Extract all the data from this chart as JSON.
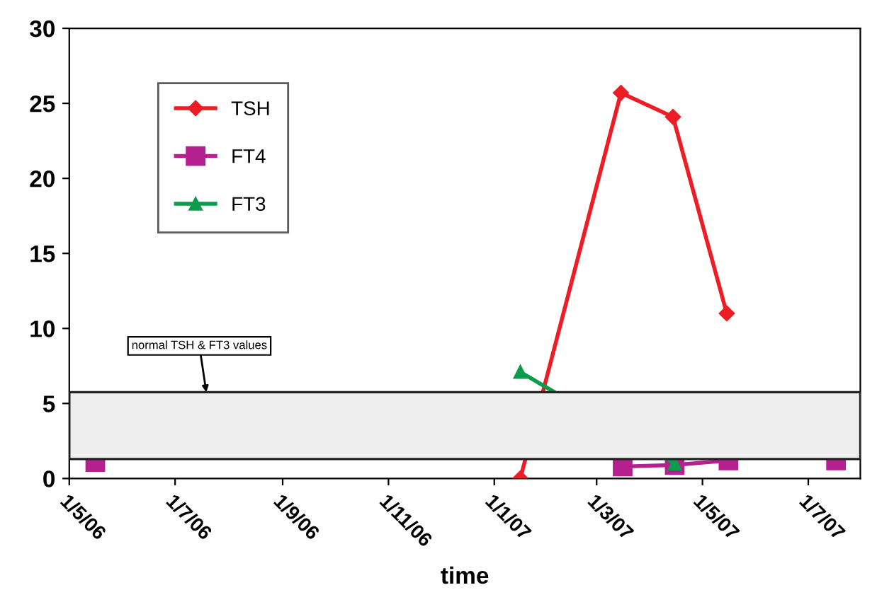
{
  "chart_data": {
    "type": "line",
    "xlabel": "time",
    "xlim": [
      "2006-05-01",
      "2007-07-31"
    ],
    "ylim": [
      0,
      30
    ],
    "yticks": [
      0,
      5,
      10,
      15,
      20,
      25,
      30
    ],
    "xticks": [
      {
        "value": "2006-05-01",
        "label": "1/5/06"
      },
      {
        "value": "2006-07-01",
        "label": "1/7/06"
      },
      {
        "value": "2006-09-01",
        "label": "1/9/06"
      },
      {
        "value": "2006-11-01",
        "label": "1/11/06"
      },
      {
        "value": "2007-01-01",
        "label": "1/1/07"
      },
      {
        "value": "2007-03-01",
        "label": "1/3/07"
      },
      {
        "value": "2007-05-01",
        "label": "1/5/07"
      },
      {
        "value": "2007-07-01",
        "label": "1/7/07"
      }
    ],
    "series": [
      {
        "name": "TSH",
        "color": "#ee1c25",
        "marker": "diamond",
        "x": [
          "2007-01-16",
          "2007-03-15",
          "2007-04-14",
          "2007-05-15"
        ],
        "values": [
          0,
          25.7,
          24.1,
          11.0
        ]
      },
      {
        "name": "FT4",
        "color": "#b5208f",
        "marker": "square",
        "x": [
          "2006-05-16",
          "2006-09-01",
          "2007-03-16",
          "2007-04-15",
          "2007-05-16",
          "2007-06-15",
          "2007-07-17"
        ],
        "values": [
          1.1,
          null,
          0.8,
          0.9,
          1.2,
          null,
          1.2
        ]
      },
      {
        "name": "FT3",
        "color": "#0c9c4c",
        "marker": "triangle",
        "x": [
          "2007-01-16",
          "2007-04-15"
        ],
        "values": [
          7.1,
          1.0
        ]
      }
    ],
    "bands": [
      {
        "axis": "y",
        "from": 1.3,
        "to": 5.75,
        "color": "#eeeeee"
      }
    ],
    "annotations": [
      {
        "text": "normal TSH & FT3 values",
        "x": "2006-07-19",
        "y": 5.75
      }
    ],
    "legend": "top left",
    "grid": false
  }
}
